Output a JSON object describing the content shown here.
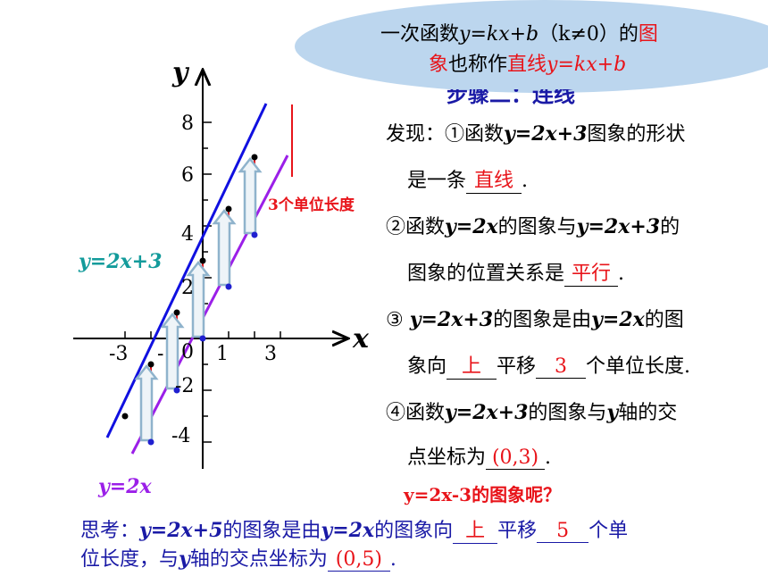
{
  "bubble": {
    "line1_prefix": "一次函数",
    "line1_formula": "y=kx+b",
    "line1_cond": "（k≠0）的",
    "line1_red": "图",
    "line2_red1": "象",
    "line2_mid": "也称作",
    "line2_red2": "直线",
    "line2_formula": "y=kx+b"
  },
  "step_title": "步骤二：连线",
  "findings": {
    "f1_a": "发现：①函数",
    "f1_b": "y=2x+3",
    "f1_c": "图象的形状",
    "f1_d": "是一条",
    "f1_ans": "直线",
    "f1_e": ".",
    "f2_a": "②函数",
    "f2_b": "y=2x",
    "f2_c": "的图象与",
    "f2_d": "y=2x+3",
    "f2_e": "的",
    "f2_f": "图象的位置关系是",
    "f2_ans": "平行",
    "f2_g": ".",
    "f3_a": "③ ",
    "f3_b": "y=2x+3",
    "f3_c": "的图象是由",
    "f3_d": "y=2x",
    "f3_e": "的图",
    "f3_f": "象向",
    "f3_ans1": "上",
    "f3_g": "平移",
    "f3_ans2": "3",
    "f3_h": "个单位长度.",
    "f4_a": "④函数",
    "f4_b": "y=2x+3",
    "f4_c": "的图象与",
    "f4_d": "y",
    "f4_e": "轴的交",
    "f4_f": "点坐标为",
    "f4_ans": "(0,3)",
    "f4_g": ".",
    "q": "y=2x-3的图象呢？"
  },
  "think": {
    "a": "思考：",
    "b": "y=2x+5",
    "c": "的图象是由",
    "d": "y=2x",
    "e": "的图象向",
    "ans1": "上",
    "f": "平移",
    "ans2": "5",
    "g": "个单",
    "h": "位长度，与",
    "i": "y",
    "j": "轴的交点坐标为",
    "ans3": "(0,5)",
    "k": "."
  },
  "graph": {
    "x_axis_label": "x",
    "y_axis_label": "y",
    "x_ticks": [
      "-3",
      "-",
      "0",
      "1",
      "3"
    ],
    "y_ticks": [
      "8",
      "6",
      "4",
      "2",
      "-2",
      "-4"
    ],
    "line1_label": "y=2x+3",
    "line2_label": "y=2x",
    "shift_label": "3个单位长度",
    "colors": {
      "line1": "#1010e0",
      "line2": "#9b1fe8",
      "arrow": "#8fb3cc",
      "red": "#e8141a",
      "teal": "#139b9b"
    }
  },
  "chart_data": {
    "type": "line",
    "series": [
      {
        "name": "y=2x+3",
        "x": [
          -3,
          -2,
          -1,
          0,
          1,
          2
        ],
        "y": [
          -3,
          -1,
          1,
          3,
          5,
          7
        ]
      },
      {
        "name": "y=2x",
        "x": [
          -2,
          -1,
          0,
          1,
          2
        ],
        "y": [
          -4,
          -2,
          0,
          2,
          4
        ]
      }
    ]
  }
}
